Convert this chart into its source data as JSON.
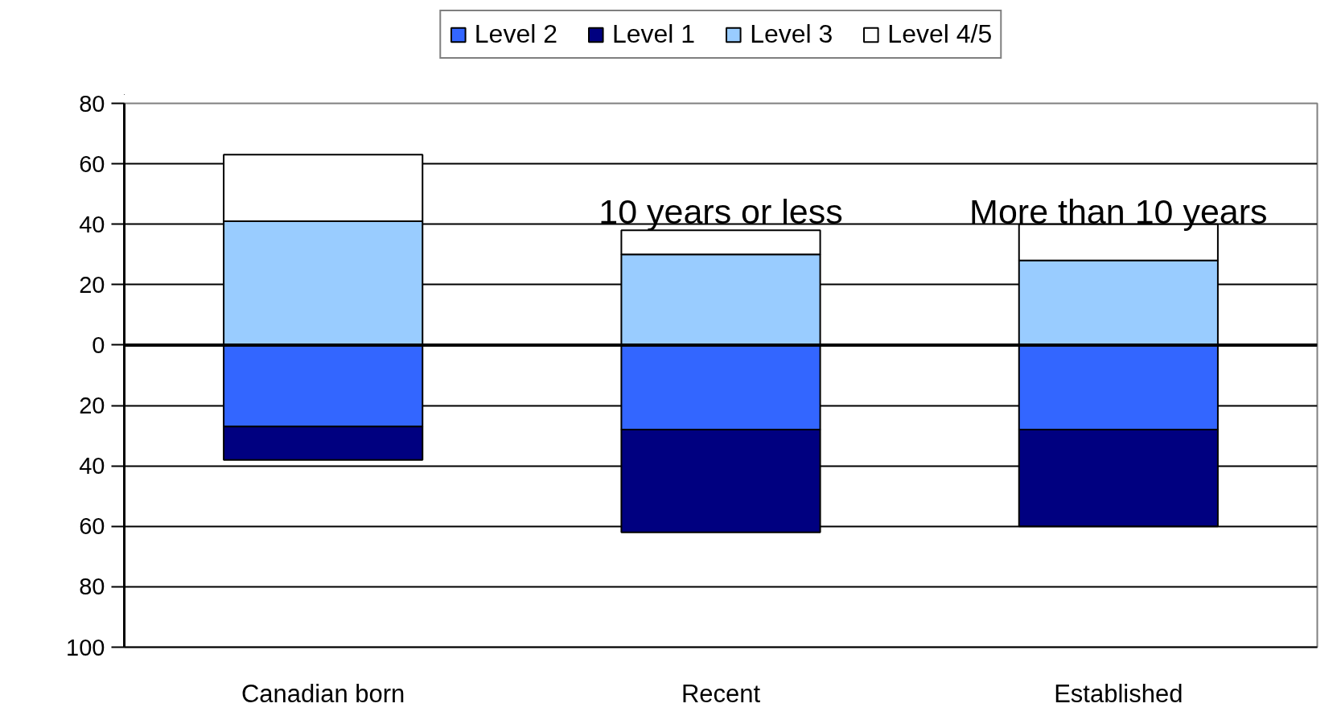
{
  "chart_data": {
    "type": "bar",
    "stacked": true,
    "categories": [
      "Canadian born",
      "Recent",
      "Established"
    ],
    "series": [
      {
        "name": "Level 2",
        "color": "#3366ff",
        "values": [
          -27,
          -28,
          -28
        ]
      },
      {
        "name": "Level 1",
        "color": "#000080",
        "values": [
          -11,
          -34,
          -32
        ]
      },
      {
        "name": "Level 3",
        "color": "#99ccff",
        "values": [
          41,
          30,
          28
        ]
      },
      {
        "name": "Level 4/5",
        "color": "#ffffff",
        "values": [
          22,
          8,
          12
        ]
      }
    ],
    "ylim": [
      -100,
      80
    ],
    "yticks": [
      {
        "value": -100,
        "label": "100"
      },
      {
        "value": -80,
        "label": "80"
      },
      {
        "value": -60,
        "label": "60"
      },
      {
        "value": -40,
        "label": "40"
      },
      {
        "value": -20,
        "label": "20"
      },
      0,
      20,
      40,
      60,
      80
    ],
    "grid": "y",
    "legend": "top",
    "ref_lines": [
      {
        "axis": "y",
        "value": 0
      }
    ],
    "annotations": [
      "10 years or less",
      "More than 10 years"
    ]
  }
}
